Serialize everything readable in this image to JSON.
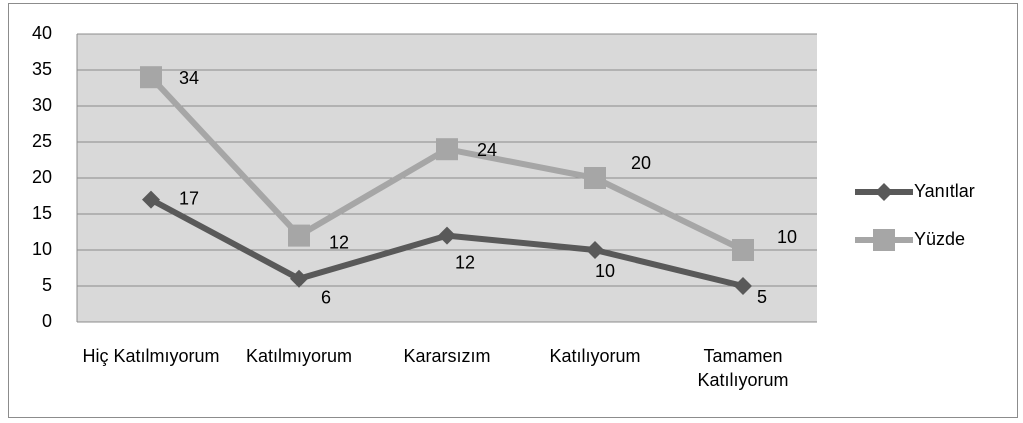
{
  "chart_data": {
    "type": "line",
    "categories": [
      "Hiç Katılmıyorum",
      "Katılmıyorum",
      "Kararsızım",
      "Katılıyorum",
      "Tamamen Katılıyorum"
    ],
    "series": [
      {
        "name": "Yanıtlar",
        "color": "#595959",
        "marker": "diamond",
        "values": [
          17,
          6,
          12,
          10,
          5
        ]
      },
      {
        "name": "Yüzde",
        "color": "#a6a6a6",
        "marker": "square",
        "values": [
          34,
          12,
          24,
          20,
          10
        ]
      }
    ],
    "ylim": [
      0,
      40
    ],
    "yticks": [
      0,
      5,
      10,
      15,
      20,
      25,
      30,
      35,
      40
    ],
    "grid": true,
    "legend": "right"
  }
}
